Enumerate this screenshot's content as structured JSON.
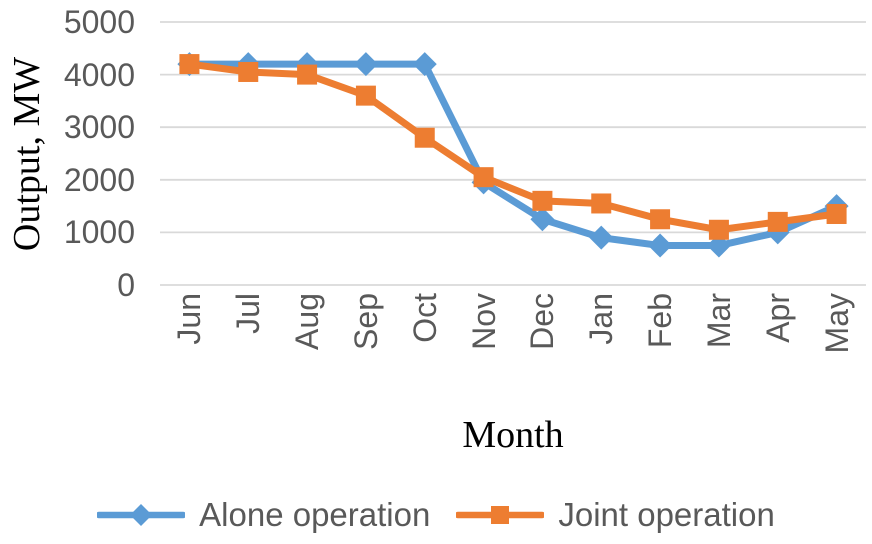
{
  "chart_data": {
    "type": "line",
    "title": "",
    "xlabel": "Month",
    "ylabel": "Output, MW",
    "categories": [
      "Jun",
      "Jul",
      "Aug",
      "Sep",
      "Oct",
      "Nov",
      "Dec",
      "Jan",
      "Feb",
      "Mar",
      "Apr",
      "May"
    ],
    "series": [
      {
        "name": "Alone operation",
        "color": "#5B9BD5",
        "marker": "diamond",
        "values": [
          4200,
          4200,
          4200,
          4200,
          4200,
          1950,
          1250,
          900,
          750,
          750,
          1000,
          1500
        ]
      },
      {
        "name": "Joint operation",
        "color": "#ED7D31",
        "marker": "square",
        "values": [
          4200,
          4050,
          4000,
          3600,
          2800,
          2050,
          1600,
          1550,
          1250,
          1050,
          1200,
          1350
        ]
      }
    ],
    "ylim": [
      0,
      5000
    ],
    "yticks": [
      0,
      1000,
      2000,
      3000,
      4000,
      5000
    ],
    "grid": "horizontal",
    "legend_position": "bottom"
  },
  "colors": {
    "gridline": "#D9D9D9",
    "tick_text": "#595959",
    "axis_title_text": "#000000",
    "series_blue": "#5B9BD5",
    "series_orange": "#ED7D31",
    "background": "#FFFFFF"
  }
}
